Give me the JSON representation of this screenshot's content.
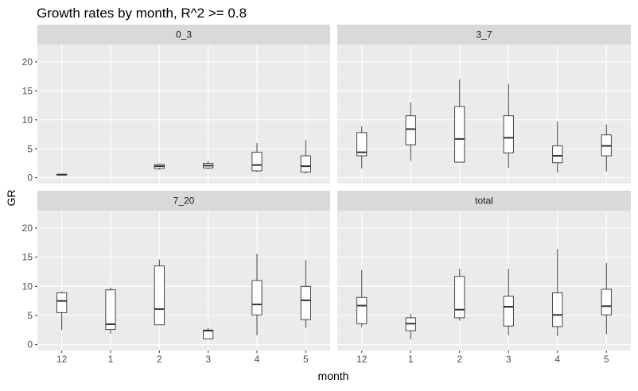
{
  "chart_data": {
    "type": "box",
    "title": "Growth rates by month, R^2 >= 0.8",
    "xlabel": "month",
    "ylabel": "GR",
    "categories": [
      "12",
      "1",
      "2",
      "3",
      "4",
      "5"
    ],
    "y_ticks": [
      0,
      5,
      10,
      15,
      20
    ],
    "ylim": [
      -1,
      23
    ],
    "grid": true,
    "facets": [
      {
        "name": "0_3",
        "boxes": [
          {
            "x": "12",
            "min": 0.45,
            "q1": 0.5,
            "median": 0.55,
            "q3": 0.6,
            "max": 0.65
          },
          {
            "x": "2",
            "min": 1.4,
            "q1": 1.6,
            "median": 2.0,
            "q3": 2.3,
            "max": 2.4
          },
          {
            "x": "3",
            "min": 1.5,
            "q1": 1.7,
            "median": 2.1,
            "q3": 2.5,
            "max": 2.9
          },
          {
            "x": "4",
            "min": 1.0,
            "q1": 1.2,
            "median": 2.2,
            "q3": 4.4,
            "max": 6.0
          },
          {
            "x": "5",
            "min": 0.7,
            "q1": 1.0,
            "median": 2.0,
            "q3": 3.8,
            "max": 6.5
          }
        ]
      },
      {
        "name": "3_7",
        "boxes": [
          {
            "x": "12",
            "min": 1.6,
            "q1": 3.8,
            "median": 4.4,
            "q3": 7.8,
            "max": 8.9
          },
          {
            "x": "1",
            "min": 2.9,
            "q1": 5.7,
            "median": 8.4,
            "q3": 10.7,
            "max": 13.0
          },
          {
            "x": "2",
            "min": 2.7,
            "q1": 2.7,
            "median": 6.7,
            "q3": 12.3,
            "max": 17.0
          },
          {
            "x": "3",
            "min": 1.7,
            "q1": 4.3,
            "median": 6.9,
            "q3": 10.7,
            "max": 16.2
          },
          {
            "x": "4",
            "min": 0.9,
            "q1": 2.6,
            "median": 3.8,
            "q3": 5.5,
            "max": 9.7
          },
          {
            "x": "5",
            "min": 1.1,
            "q1": 3.8,
            "median": 5.5,
            "q3": 7.4,
            "max": 9.2
          }
        ]
      },
      {
        "name": "7_20",
        "boxes": [
          {
            "x": "12",
            "min": 2.5,
            "q1": 5.5,
            "median": 7.5,
            "q3": 8.9,
            "max": 9.1
          },
          {
            "x": "1",
            "min": 1.9,
            "q1": 2.6,
            "median": 3.5,
            "q3": 9.4,
            "max": 9.8
          },
          {
            "x": "2",
            "min": 3.4,
            "q1": 3.4,
            "median": 6.1,
            "q3": 13.5,
            "max": 14.6
          },
          {
            "x": "3",
            "min": 1.0,
            "q1": 1.0,
            "median": 2.4,
            "q3": 2.5,
            "max": 2.9
          },
          {
            "x": "4",
            "min": 1.6,
            "q1": 5.1,
            "median": 6.9,
            "q3": 11.0,
            "max": 15.6
          },
          {
            "x": "5",
            "min": 2.9,
            "q1": 4.3,
            "median": 7.6,
            "q3": 10.0,
            "max": 14.5
          }
        ]
      },
      {
        "name": "total",
        "boxes": [
          {
            "x": "12",
            "min": 3.0,
            "q1": 3.6,
            "median": 6.7,
            "q3": 8.1,
            "max": 12.8
          },
          {
            "x": "1",
            "min": 0.9,
            "q1": 2.4,
            "median": 3.6,
            "q3": 4.6,
            "max": 5.3
          },
          {
            "x": "2",
            "min": 4.1,
            "q1": 4.6,
            "median": 6.0,
            "q3": 11.7,
            "max": 13.0
          },
          {
            "x": "3",
            "min": 1.6,
            "q1": 3.2,
            "median": 6.5,
            "q3": 8.3,
            "max": 13.0
          },
          {
            "x": "4",
            "min": 1.5,
            "q1": 3.1,
            "median": 5.1,
            "q3": 8.9,
            "max": 16.4
          },
          {
            "x": "5",
            "min": 1.8,
            "q1": 5.1,
            "median": 6.6,
            "q3": 9.5,
            "max": 14.0
          }
        ]
      }
    ]
  },
  "colors": {
    "panel_bg": "#ebebeb",
    "strip_bg": "#d9d9d9",
    "grid_major": "#ffffff",
    "box_fill": "#ffffff",
    "box_stroke": "#333333",
    "text": "#000000",
    "tick_text": "#4d4d4d"
  }
}
